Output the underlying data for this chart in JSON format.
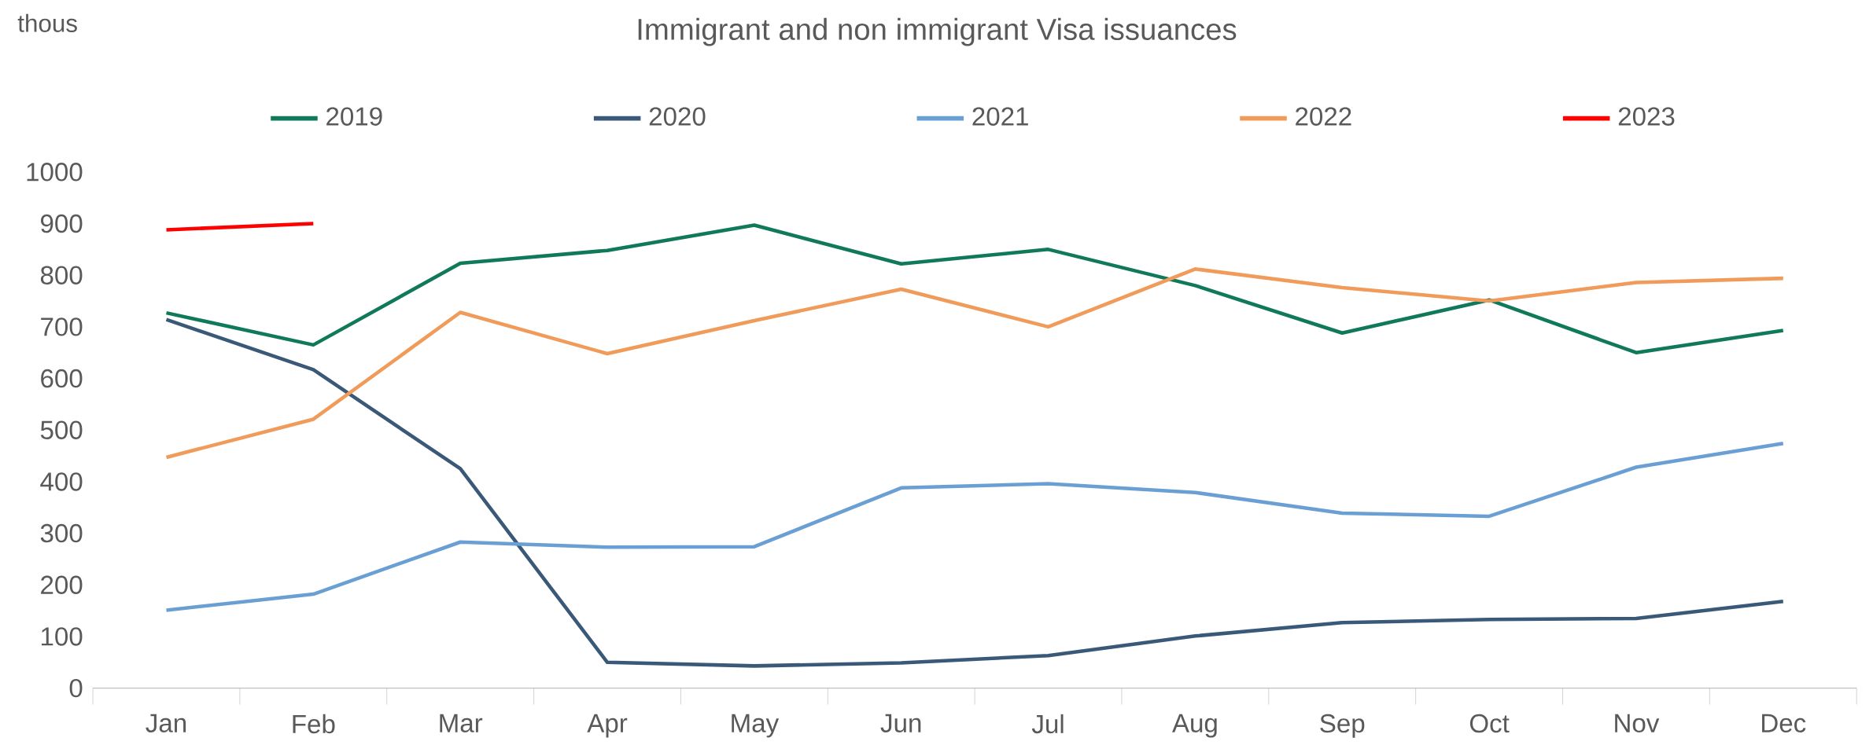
{
  "chart_data": {
    "type": "line",
    "title": "Immigrant and non immigrant Visa issuances",
    "annotations": [
      "thous"
    ],
    "categories": [
      "Jan",
      "Feb",
      "Mar",
      "Apr",
      "May",
      "Jun",
      "Jul",
      "Aug",
      "Sep",
      "Oct",
      "Nov",
      "Dec"
    ],
    "series": [
      {
        "name": "2019",
        "color": "#10795a",
        "values": [
          727,
          665,
          823,
          848,
          897,
          822,
          850,
          780,
          688,
          752,
          650,
          693
        ]
      },
      {
        "name": "2020",
        "color": "#3a5878",
        "values": [
          714,
          617,
          425,
          50,
          43,
          49,
          63,
          101,
          127,
          133,
          135,
          168
        ]
      },
      {
        "name": "2021",
        "color": "#6a9fd4",
        "values": [
          151,
          182,
          283,
          273,
          274,
          388,
          396,
          379,
          339,
          333,
          428,
          474
        ]
      },
      {
        "name": "2022",
        "color": "#f09b5a",
        "values": [
          447,
          521,
          728,
          648,
          712,
          773,
          700,
          812,
          776,
          750,
          786,
          794
        ]
      },
      {
        "name": "2023",
        "color": "#ff0000",
        "values": [
          888,
          900,
          null,
          null,
          null,
          null,
          null,
          null,
          null,
          null,
          null,
          null
        ]
      }
    ],
    "ylim": [
      0,
      1000
    ],
    "yticks": [
      0,
      100,
      200,
      300,
      400,
      500,
      600,
      700,
      800,
      900,
      1000
    ],
    "grid": false,
    "legend": "top",
    "marker": "none",
    "line_style": "solid"
  }
}
